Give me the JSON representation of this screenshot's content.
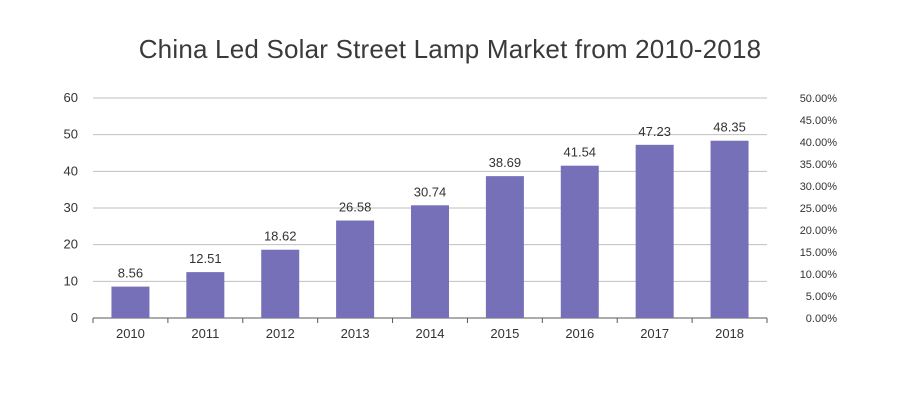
{
  "chart_data": {
    "type": "bar",
    "title": "China Led Solar Street Lamp Market from 2010-2018",
    "xlabel": "",
    "ylabel": "",
    "categories": [
      "2010",
      "2011",
      "2012",
      "2013",
      "2014",
      "2015",
      "2016",
      "2017",
      "2018"
    ],
    "values": [
      8.56,
      12.51,
      18.62,
      26.58,
      30.74,
      38.69,
      41.54,
      47.23,
      48.35
    ],
    "data_labels": [
      "8.56",
      "12.51",
      "18.62",
      "26.58",
      "30.74",
      "38.69",
      "41.54",
      "47.23",
      "48.35"
    ],
    "ylim": [
      0,
      60
    ],
    "y_ticks": [
      "0",
      "10",
      "20",
      "30",
      "40",
      "50",
      "60"
    ],
    "y2lim": [
      0,
      50
    ],
    "y2_ticks": [
      "0.00%",
      "5.00%",
      "10.00%",
      "15.00%",
      "20.00%",
      "25.00%",
      "30.00%",
      "35.00%",
      "40.00%",
      "45.00%",
      "50.00%"
    ],
    "grid": true,
    "colors": {
      "bar": "#7570b8",
      "grid": "#bfbfbf",
      "axis": "#595959",
      "text": "#333333"
    }
  }
}
